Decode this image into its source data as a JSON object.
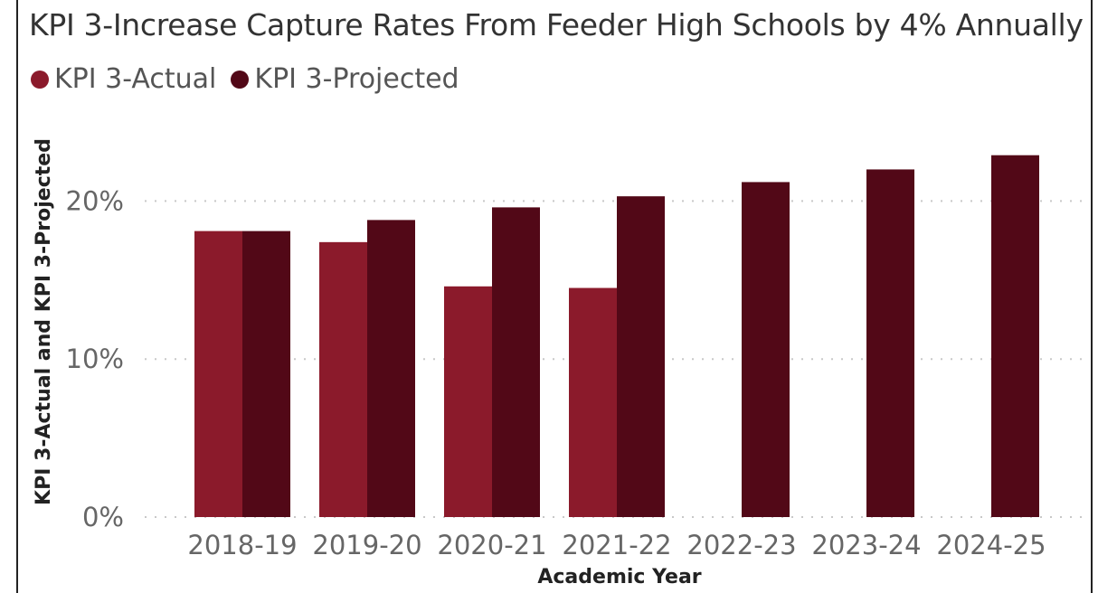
{
  "chart_data": {
    "type": "bar",
    "title": "KPI 3-Increase Capture Rates From Feeder High Schools by 4% Annually",
    "xlabel": "Academic Year",
    "ylabel": "KPI 3-Actual and KPI 3-Projected",
    "categories": [
      "2018-19",
      "2019-20",
      "2020-21",
      "2021-22",
      "2022-23",
      "2023-24",
      "2024-25"
    ],
    "series": [
      {
        "name": "KPI 3-Actual",
        "color": "#8b1a2b",
        "values": [
          18.1,
          17.4,
          14.6,
          14.5,
          null,
          null,
          null
        ]
      },
      {
        "name": "KPI 3-Projected",
        "color": "#520817",
        "values": [
          18.1,
          18.8,
          19.6,
          20.3,
          21.2,
          22.0,
          22.9
        ]
      }
    ],
    "ylim": [
      0,
      25
    ],
    "yticks": [
      0,
      10,
      20
    ],
    "ytick_labels": [
      "0%",
      "10%",
      "20%"
    ],
    "grid": true,
    "legend_position": "top-left"
  }
}
